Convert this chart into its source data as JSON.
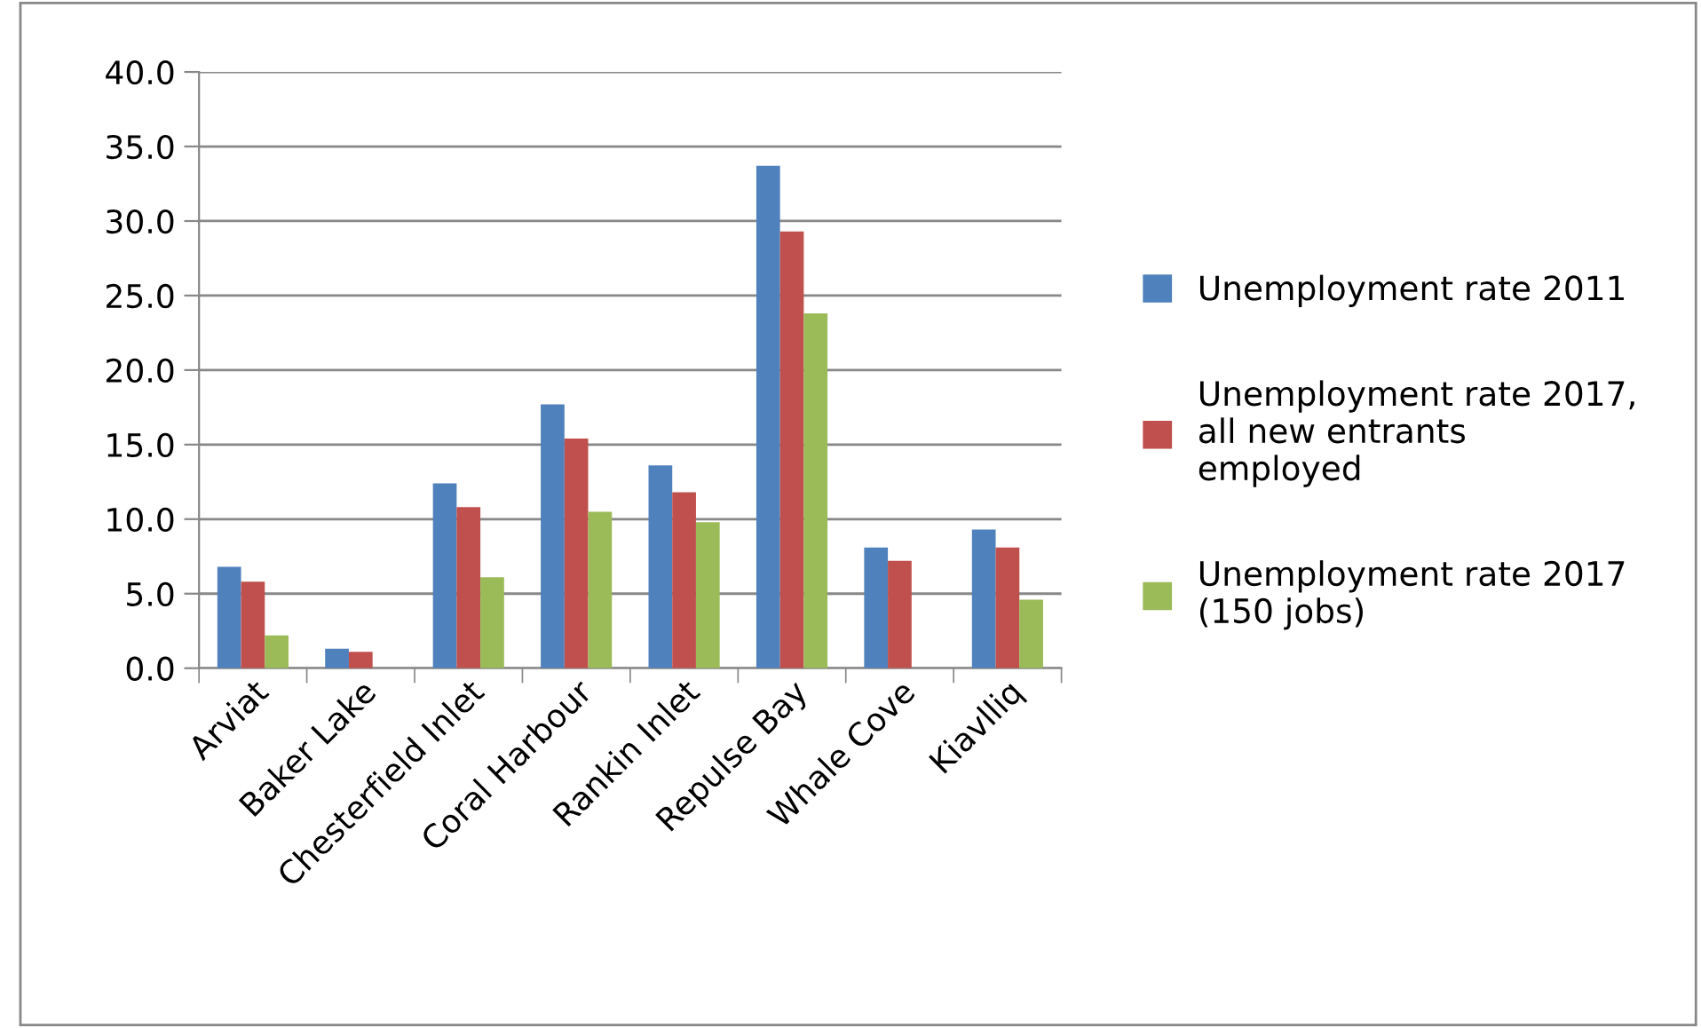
{
  "chart_data": {
    "type": "bar",
    "categories": [
      "Arviat",
      "Baker Lake",
      "Chesterfield Inlet",
      "Coral Harbour",
      "Rankin Inlet",
      "Repulse Bay",
      "Whale Cove",
      "Kiavlliq"
    ],
    "series": [
      {
        "name": "Unemployment rate 2011",
        "color": "#4f81bd",
        "values": [
          6.8,
          1.3,
          12.4,
          17.7,
          13.6,
          33.7,
          8.1,
          9.3
        ]
      },
      {
        "name": "Unemployment rate 2017,\nall new entrants\nemployed",
        "color": "#c0504d",
        "values": [
          5.8,
          1.1,
          10.8,
          15.4,
          11.8,
          29.3,
          7.2,
          8.1
        ]
      },
      {
        "name": "Unemployment rate 2017\n(150 jobs)",
        "color": "#9bbb59",
        "values": [
          2.2,
          null,
          6.1,
          10.5,
          9.8,
          23.8,
          null,
          4.6
        ]
      }
    ],
    "ylim": [
      0,
      40
    ],
    "yticks": [
      {
        "value": 0,
        "label": "0.0"
      },
      {
        "value": 5,
        "label": "5.0"
      },
      {
        "value": 10,
        "label": "10.0"
      },
      {
        "value": 15,
        "label": "15.0"
      },
      {
        "value": 20,
        "label": "20.0"
      },
      {
        "value": 25,
        "label": "25.0"
      },
      {
        "value": 30,
        "label": "30.0"
      },
      {
        "value": 35,
        "label": "35.0"
      },
      {
        "value": 40,
        "label": "40.0"
      }
    ],
    "grid": "y",
    "legend": "right"
  }
}
